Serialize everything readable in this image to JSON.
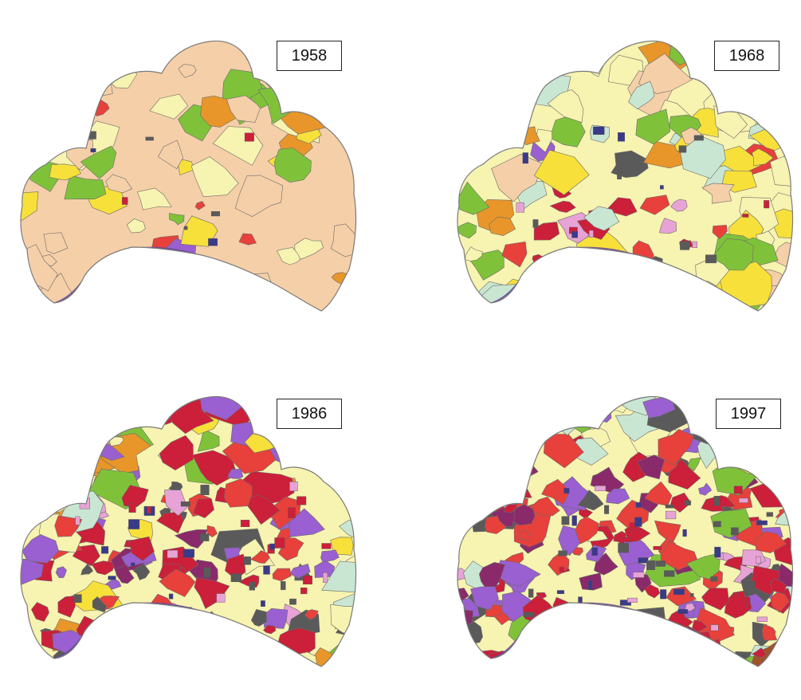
{
  "maps": [
    {
      "year": "1958",
      "stage": 0
    },
    {
      "year": "1968",
      "stage": 1
    },
    {
      "year": "1986",
      "stage": 2
    },
    {
      "year": "1997",
      "stage": 3
    }
  ],
  "palette": {
    "background": "#ffffff",
    "outline": "#7a7a7a",
    "coast": "#6a4a9a",
    "colors": [
      "#f7f3b0",
      "#f5cfa8",
      "#f7e03a",
      "#7fc23a",
      "#e8962a",
      "#c9e6d2",
      "#e8403a",
      "#cc1f3a",
      "#8a2a6a",
      "#9a5fd0",
      "#5a5a5a",
      "#e7a3d6",
      "#a0522d",
      "#3a3a8a",
      "#ff2a2a",
      "#d8a020"
    ]
  }
}
